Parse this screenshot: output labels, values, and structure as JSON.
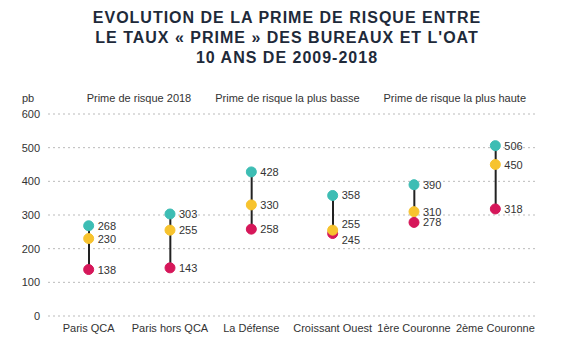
{
  "chart_data": {
    "type": "scatter",
    "title": "EVOLUTION DE LA PRIME DE RISQUE ENTRE\nLE TAUX « PRIME » DES BUREAUX ET L'OAT\n10 ANS DE 2009-2018",
    "y_label": "pb",
    "categories": [
      "Paris QCA",
      "Paris hors QCA",
      "La Défense",
      "Croissant Ouest",
      "1ère Couronne",
      "2ème Couronne"
    ],
    "series": [
      {
        "name": "Prime de risque la plus haute",
        "color": "#3dbdb4",
        "values": [
          268,
          303,
          428,
          358,
          390,
          506
        ]
      },
      {
        "name": "Prime de risque la plus basse",
        "color": "#d6175a",
        "values": [
          138,
          143,
          258,
          245,
          278,
          318
        ]
      },
      {
        "name": "Prime de risque 2018",
        "color": "#f7c32e",
        "values": [
          230,
          255,
          330,
          255,
          310,
          450
        ]
      }
    ],
    "ylim": [
      0,
      600
    ],
    "yticks": [
      0,
      100,
      200,
      300,
      400,
      500,
      600
    ],
    "grid": true,
    "data_labels": true,
    "legend": "top"
  }
}
